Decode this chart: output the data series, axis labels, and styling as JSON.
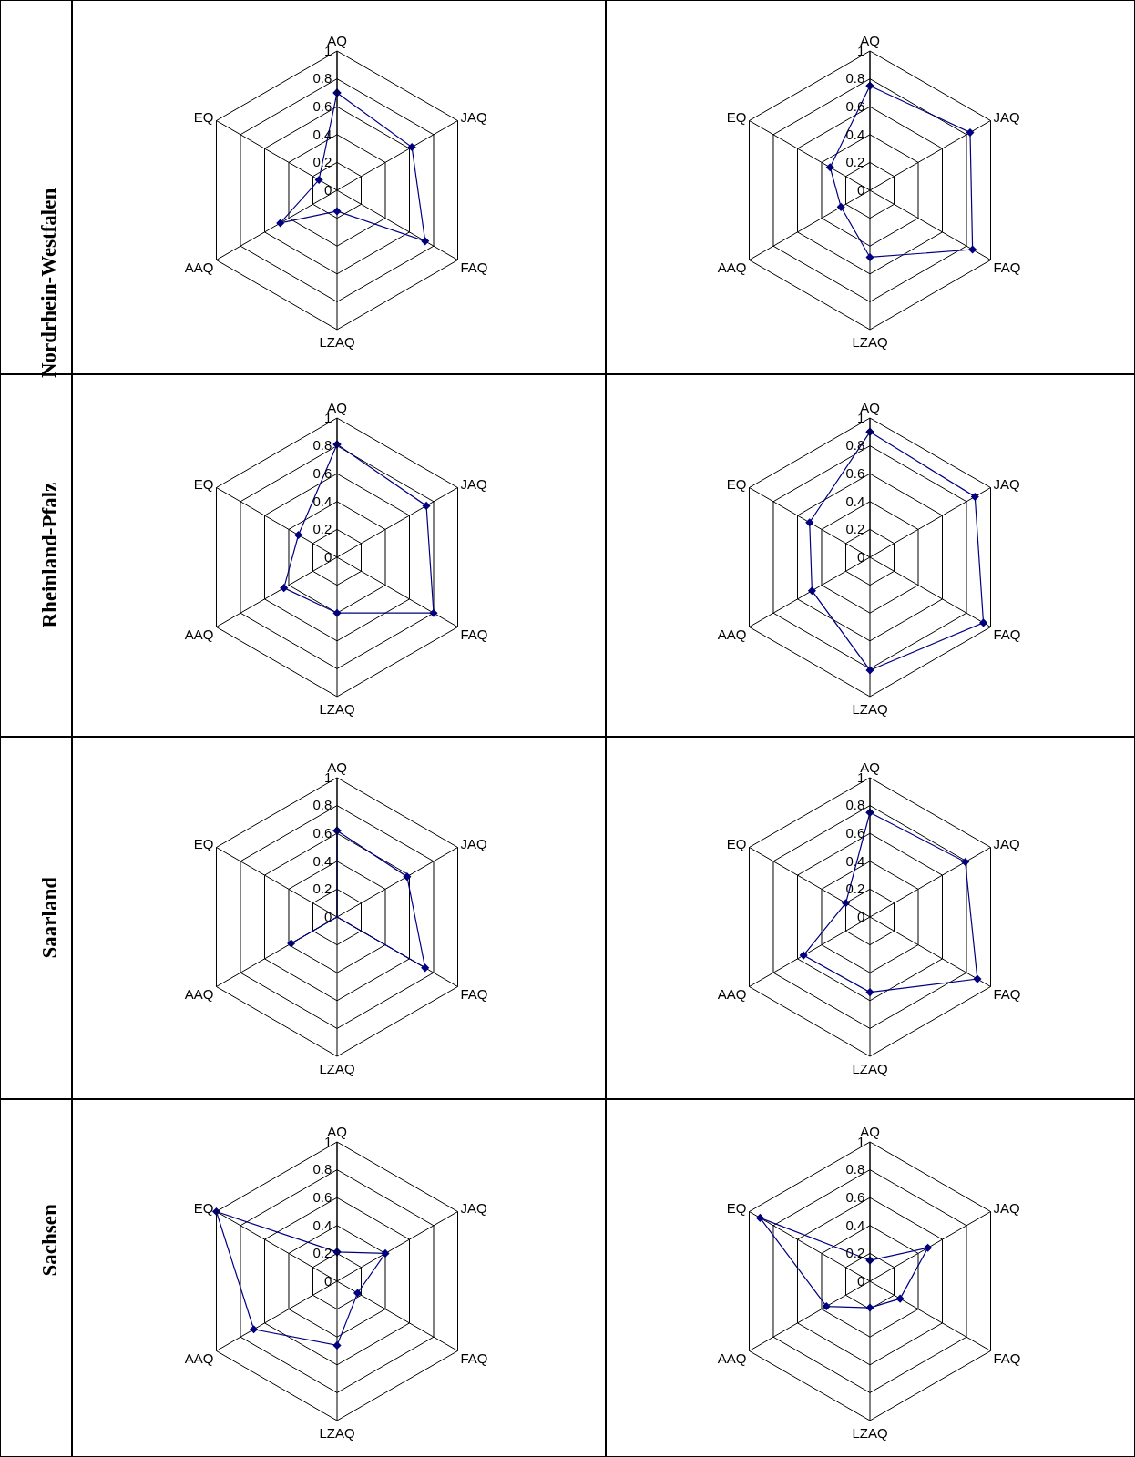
{
  "chart_data": [
    {
      "type": "radar",
      "title": "Nordrhein-Westfalen",
      "categories": [
        "AQ",
        "JAQ",
        "FAQ",
        "LZAQ",
        "AAQ",
        "EQ"
      ],
      "ylim": [
        0,
        1
      ],
      "yticks": [
        0,
        0.2,
        0.4,
        0.6,
        0.8,
        1
      ],
      "grid": true,
      "marker": "diamond",
      "series": [
        {
          "color": "#000080",
          "values": [
            0.7,
            0.62,
            0.73,
            0.15,
            0.47,
            0.15
          ]
        }
      ]
    },
    {
      "type": "radar",
      "categories": [
        "AQ",
        "JAQ",
        "FAQ",
        "LZAQ",
        "AAQ",
        "EQ"
      ],
      "ylim": [
        0,
        1
      ],
      "yticks": [
        0,
        0.2,
        0.4,
        0.6,
        0.8,
        1
      ],
      "grid": true,
      "marker": "diamond",
      "series": [
        {
          "color": "#000080",
          "values": [
            0.75,
            0.83,
            0.85,
            0.48,
            0.24,
            0.33
          ]
        }
      ]
    },
    {
      "type": "radar",
      "title": "Rheinland-Pfalz",
      "categories": [
        "AQ",
        "JAQ",
        "FAQ",
        "LZAQ",
        "AAQ",
        "EQ"
      ],
      "ylim": [
        0,
        1
      ],
      "yticks": [
        0,
        0.2,
        0.4,
        0.6,
        0.8,
        1
      ],
      "grid": true,
      "marker": "diamond",
      "series": [
        {
          "color": "#000080",
          "values": [
            0.81,
            0.74,
            0.8,
            0.4,
            0.44,
            0.32
          ]
        }
      ]
    },
    {
      "type": "radar",
      "categories": [
        "AQ",
        "JAQ",
        "FAQ",
        "LZAQ",
        "AAQ",
        "EQ"
      ],
      "ylim": [
        0,
        1
      ],
      "yticks": [
        0,
        0.2,
        0.4,
        0.6,
        0.8,
        1
      ],
      "grid": true,
      "marker": "diamond",
      "series": [
        {
          "color": "#000080",
          "values": [
            0.9,
            0.87,
            0.94,
            0.81,
            0.48,
            0.5
          ]
        }
      ]
    },
    {
      "type": "radar",
      "title": "Saarland",
      "categories": [
        "AQ",
        "JAQ",
        "FAQ",
        "LZAQ",
        "AAQ",
        "EQ"
      ],
      "ylim": [
        0,
        1
      ],
      "yticks": [
        0,
        0.2,
        0.4,
        0.6,
        0.8,
        1
      ],
      "grid": true,
      "marker": "diamond",
      "series": [
        {
          "color": "#000080",
          "values": [
            0.62,
            0.58,
            0.73,
            0,
            0.38,
            0
          ]
        }
      ]
    },
    {
      "type": "radar",
      "categories": [
        "AQ",
        "JAQ",
        "FAQ",
        "LZAQ",
        "AAQ",
        "EQ"
      ],
      "ylim": [
        0,
        1
      ],
      "yticks": [
        0,
        0.2,
        0.4,
        0.6,
        0.8,
        1
      ],
      "grid": true,
      "marker": "diamond",
      "series": [
        {
          "color": "#000080",
          "values": [
            0.75,
            0.79,
            0.89,
            0.54,
            0.55,
            0.2
          ]
        }
      ]
    },
    {
      "type": "radar",
      "title": "Sachsen",
      "categories": [
        "AQ",
        "JAQ",
        "FAQ",
        "LZAQ",
        "AAQ",
        "EQ"
      ],
      "ylim": [
        0,
        1
      ],
      "yticks": [
        0,
        0.2,
        0.4,
        0.6,
        0.8,
        1
      ],
      "grid": true,
      "marker": "diamond",
      "series": [
        {
          "color": "#000080",
          "values": [
            0.21,
            0.4,
            0.17,
            0.46,
            0.69,
            1.0
          ]
        }
      ]
    },
    {
      "type": "radar",
      "categories": [
        "AQ",
        "JAQ",
        "FAQ",
        "LZAQ",
        "AAQ",
        "EQ"
      ],
      "ylim": [
        0,
        1
      ],
      "yticks": [
        0,
        0.2,
        0.4,
        0.6,
        0.8,
        1
      ],
      "grid": true,
      "marker": "diamond",
      "series": [
        {
          "color": "#000080",
          "values": [
            0.15,
            0.48,
            0.25,
            0.19,
            0.36,
            0.91
          ]
        }
      ]
    }
  ]
}
